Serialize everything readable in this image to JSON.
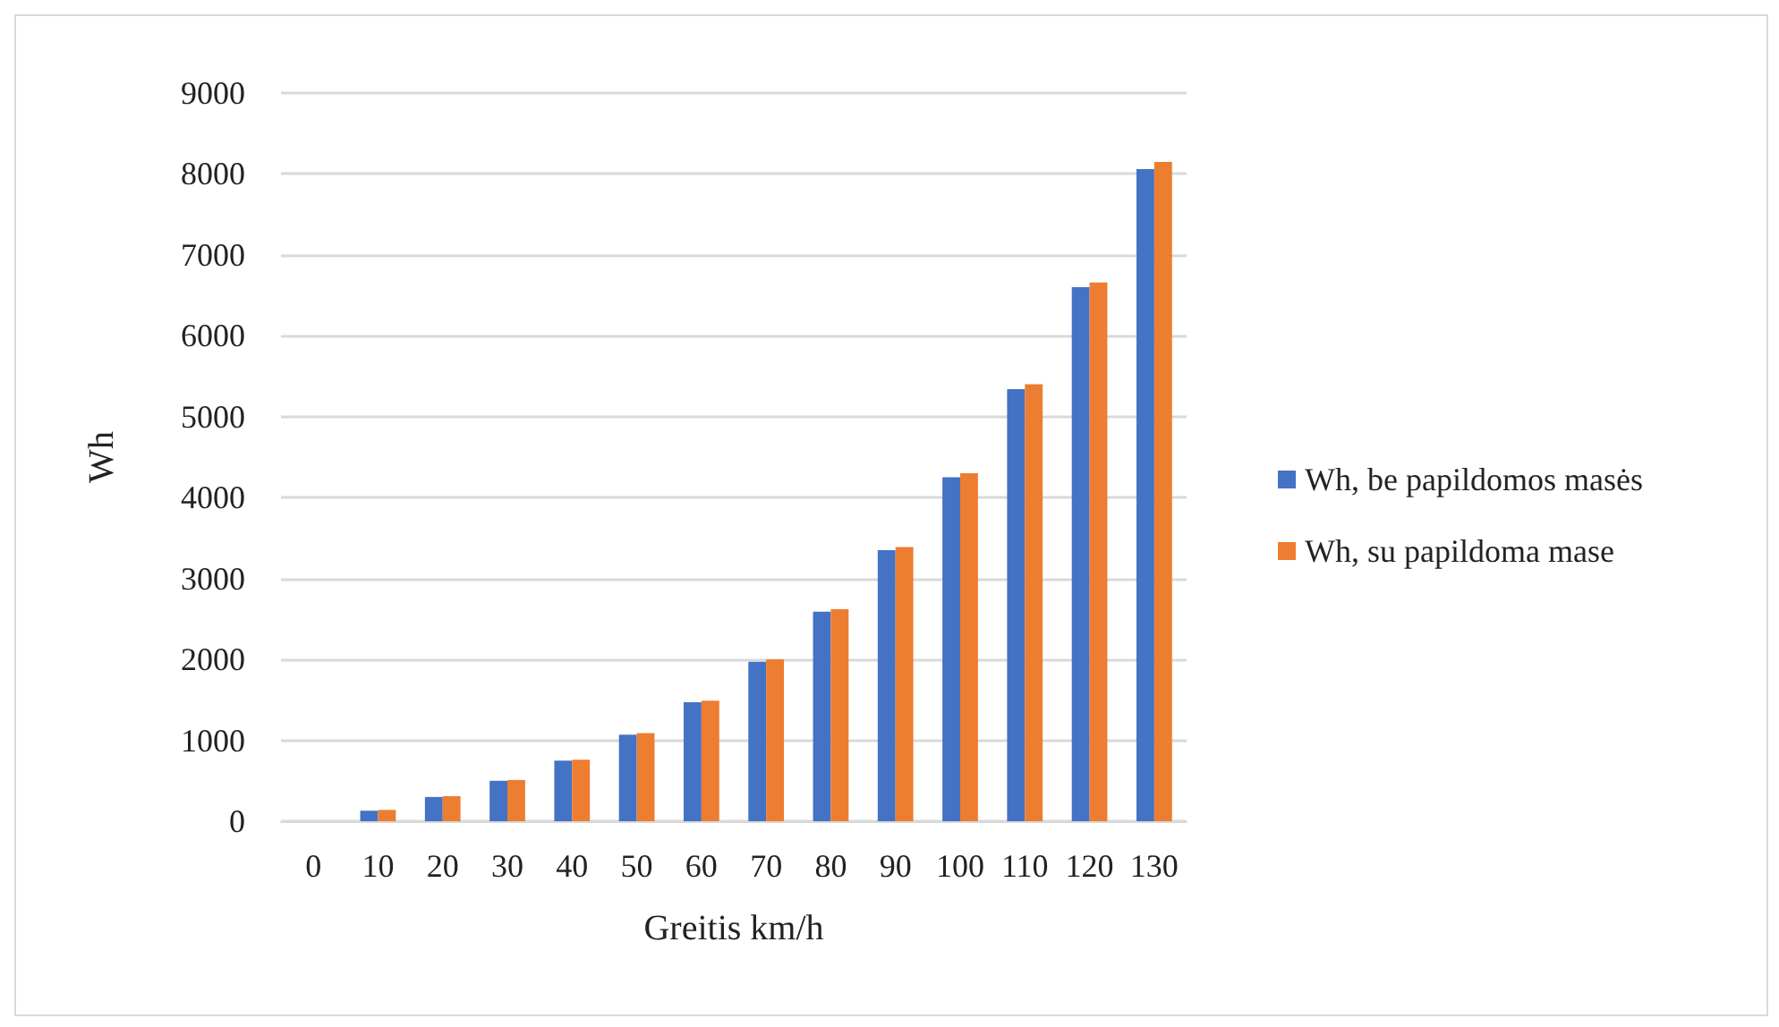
{
  "chart_data": {
    "type": "bar",
    "xlabel": "Greitis km/h",
    "ylabel": "Wh",
    "categories": [
      "0",
      "10",
      "20",
      "30",
      "40",
      "50",
      "60",
      "70",
      "80",
      "90",
      "100",
      "110",
      "120",
      "130"
    ],
    "series": [
      {
        "name": "Wh, be papildomos masės",
        "color": "#4472c4",
        "values": [
          0,
          130,
          300,
          500,
          750,
          1070,
          1470,
          1970,
          2590,
          3350,
          4250,
          5340,
          6600,
          8060
        ]
      },
      {
        "name": "Wh, su papildoma mase",
        "color": "#ed7d31",
        "values": [
          0,
          140,
          310,
          510,
          760,
          1090,
          1490,
          2000,
          2620,
          3390,
          4300,
          5400,
          6660,
          8150
        ]
      }
    ],
    "ylim": [
      0,
      9000
    ],
    "yticks": [
      0,
      1000,
      2000,
      3000,
      4000,
      5000,
      6000,
      7000,
      8000,
      9000
    ],
    "grid": "y",
    "legend": "right"
  }
}
